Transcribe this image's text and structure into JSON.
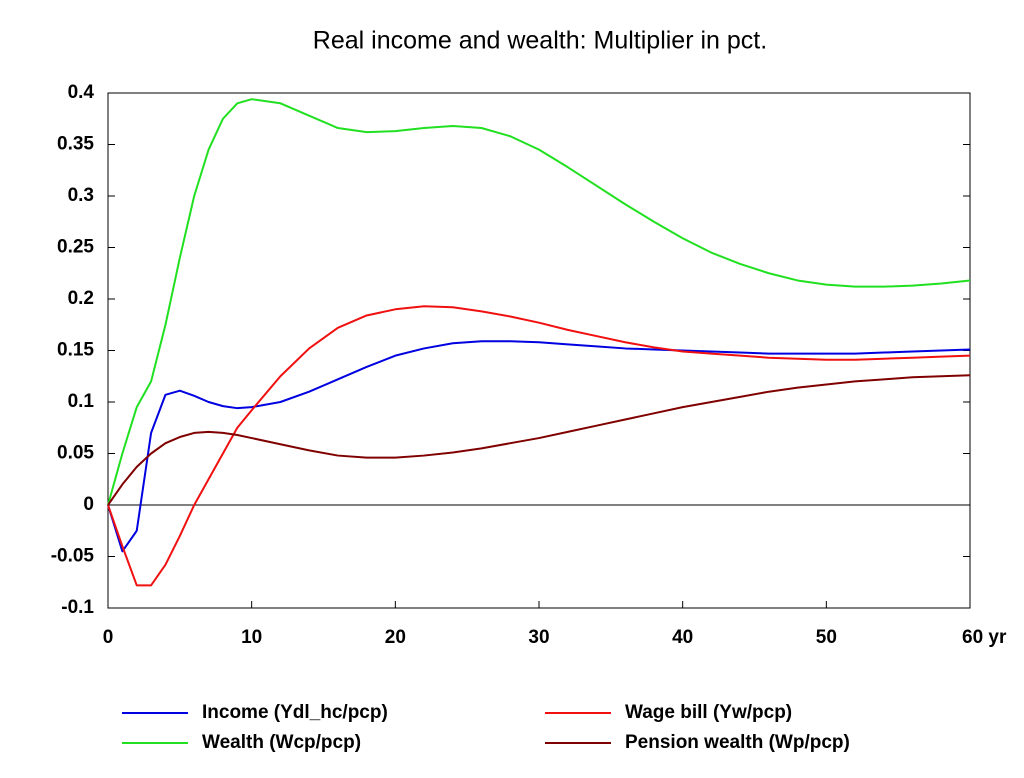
{
  "chart_data": {
    "type": "line",
    "title": "Real income and wealth: Multiplier in pct.",
    "x": [
      0,
      1,
      2,
      3,
      4,
      5,
      6,
      7,
      8,
      9,
      10,
      12,
      14,
      16,
      18,
      20,
      22,
      24,
      26,
      28,
      30,
      32,
      34,
      36,
      38,
      40,
      42,
      44,
      46,
      48,
      50,
      52,
      54,
      56,
      58,
      60
    ],
    "series": [
      {
        "name": "Income (Ydl_hc/pcp)",
        "color": "#0000e0",
        "values": [
          0,
          -0.045,
          -0.025,
          0.07,
          0.107,
          0.111,
          0.106,
          0.1,
          0.096,
          0.094,
          0.095,
          0.1,
          0.11,
          0.122,
          0.134,
          0.145,
          0.152,
          0.157,
          0.159,
          0.159,
          0.158,
          0.156,
          0.154,
          0.152,
          0.151,
          0.15,
          0.149,
          0.148,
          0.147,
          0.147,
          0.147,
          0.147,
          0.148,
          0.149,
          0.15,
          0.151
        ]
      },
      {
        "name": "Wage bill (Yw/pcp)",
        "color": "#f01010",
        "values": [
          0,
          -0.04,
          -0.078,
          -0.078,
          -0.058,
          -0.03,
          0,
          0.025,
          0.05,
          0.075,
          0.092,
          0.125,
          0.152,
          0.172,
          0.184,
          0.19,
          0.193,
          0.192,
          0.188,
          0.183,
          0.177,
          0.17,
          0.164,
          0.158,
          0.153,
          0.149,
          0.147,
          0.145,
          0.143,
          0.142,
          0.141,
          0.141,
          0.142,
          0.143,
          0.144,
          0.145
        ]
      },
      {
        "name": "Wealth (Wcp/pcp)",
        "color": "#20e020",
        "values": [
          0,
          0.05,
          0.095,
          0.12,
          0.175,
          0.24,
          0.3,
          0.345,
          0.375,
          0.39,
          0.394,
          0.39,
          0.378,
          0.366,
          0.362,
          0.363,
          0.366,
          0.368,
          0.366,
          0.358,
          0.345,
          0.328,
          0.31,
          0.292,
          0.275,
          0.259,
          0.245,
          0.234,
          0.225,
          0.218,
          0.214,
          0.212,
          0.212,
          0.213,
          0.215,
          0.218
        ]
      },
      {
        "name": "Pension wealth (Wp/pcp)",
        "color": "#800000",
        "values": [
          0,
          0.02,
          0.037,
          0.05,
          0.06,
          0.066,
          0.07,
          0.071,
          0.07,
          0.068,
          0.065,
          0.059,
          0.053,
          0.048,
          0.046,
          0.046,
          0.048,
          0.051,
          0.055,
          0.06,
          0.065,
          0.071,
          0.077,
          0.083,
          0.089,
          0.095,
          0.1,
          0.105,
          0.11,
          0.114,
          0.117,
          0.12,
          0.122,
          0.124,
          0.125,
          0.126
        ]
      }
    ],
    "xlim": [
      0,
      60
    ],
    "xticks": [
      0,
      10,
      20,
      30,
      40,
      50,
      {
        "value": 60,
        "label": "60 yr"
      }
    ],
    "ylim": [
      -0.1,
      0.4
    ],
    "yticks": [
      -0.1,
      -0.05,
      0,
      0.05,
      0.1,
      0.15,
      0.2,
      0.25,
      0.3,
      0.35,
      0.4
    ],
    "grid": false
  }
}
